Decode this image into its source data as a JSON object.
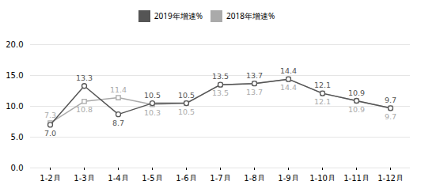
{
  "chart_data": {
    "type": "line",
    "categories": [
      "1-2月",
      "1-3月",
      "1-4月",
      "1-5月",
      "1-6月",
      "1-7月",
      "1-8月",
      "1-9月",
      "1-10月",
      "1-11月",
      "1-12月"
    ],
    "series": [
      {
        "name": "2019年增速%",
        "color": "#555555",
        "marker": "circle",
        "values": [
          7.0,
          13.3,
          8.7,
          10.5,
          10.5,
          13.5,
          13.7,
          14.4,
          12.1,
          10.9,
          9.7
        ],
        "value_labels": [
          "7.0",
          "13.3",
          "8.7",
          "10.5",
          "10.5",
          "13.5",
          "13.7",
          "14.4",
          "12.1",
          "10.9",
          "9.7"
        ]
      },
      {
        "name": "2018年增速%",
        "color": "#aaaaaa",
        "marker": "square",
        "values": [
          7.3,
          10.8,
          11.4,
          10.3,
          10.5,
          13.5,
          13.7,
          14.4,
          12.1,
          10.9,
          9.7
        ],
        "value_labels": [
          "7.3",
          "10.8",
          "11.4",
          "10.3",
          "10.5",
          "13.5",
          "13.7",
          "14.4",
          "12.1",
          "10.9",
          "9.7"
        ]
      }
    ],
    "ylim": [
      0.0,
      20.0
    ],
    "yticks": [
      {
        "value": 0.0,
        "label": "0.0"
      },
      {
        "value": 5.0,
        "label": "5.0"
      },
      {
        "value": 10.0,
        "label": "10.0"
      },
      {
        "value": 15.0,
        "label": "15.0"
      },
      {
        "value": 20.0,
        "label": "20.0"
      }
    ],
    "grid": true,
    "legend": "top",
    "data_labels": true
  }
}
